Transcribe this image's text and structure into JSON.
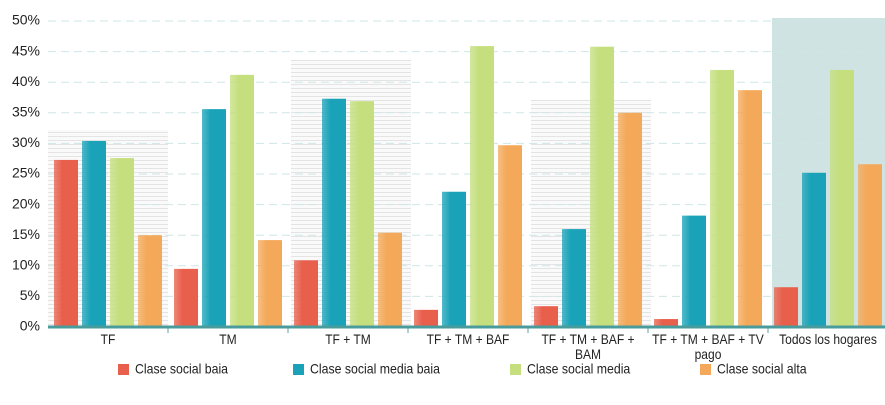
{
  "chart_data": {
    "type": "bar",
    "categories": [
      "TF",
      "TM",
      "TF + TM",
      "TF + TM + BAF",
      "TF + TM + BAF + BAM",
      "TF + TM + BAF + TV pago",
      "Todos los hogares"
    ],
    "series": [
      {
        "name": "Clase social baia",
        "color": "#e8604c",
        "values": [
          27.3,
          9.5,
          10.9,
          2.8,
          3.4,
          1.3,
          6.5
        ]
      },
      {
        "name": "Clase social media baia",
        "color": "#1aa3b8",
        "values": [
          30.4,
          35.6,
          37.3,
          22.1,
          16.0,
          18.2,
          25.2
        ]
      },
      {
        "name": "Clase social media",
        "color": "#c5df7f",
        "values": [
          27.6,
          41.2,
          36.9,
          45.9,
          45.8,
          42.0,
          42.0
        ]
      },
      {
        "name": "Clase social alta",
        "color": "#f4a95a",
        "values": [
          15.0,
          14.2,
          15.4,
          29.7,
          35.0,
          38.7,
          26.6
        ]
      }
    ],
    "ylim": [
      0,
      50
    ],
    "yticks": [
      {
        "value": 0,
        "label": "0%"
      },
      {
        "value": 5,
        "label": "5%"
      },
      {
        "value": 10,
        "label": "10%"
      },
      {
        "value": 15,
        "label": "15%"
      },
      {
        "value": 20,
        "label": "20%"
      },
      {
        "value": 25,
        "label": "25%"
      },
      {
        "value": 30,
        "label": "30%"
      },
      {
        "value": 35,
        "label": "35%"
      },
      {
        "value": 40,
        "label": "40%"
      },
      {
        "value": 45,
        "label": "45%"
      },
      {
        "value": 50,
        "label": "50%"
      }
    ],
    "grid": true,
    "legend": "bottom"
  }
}
